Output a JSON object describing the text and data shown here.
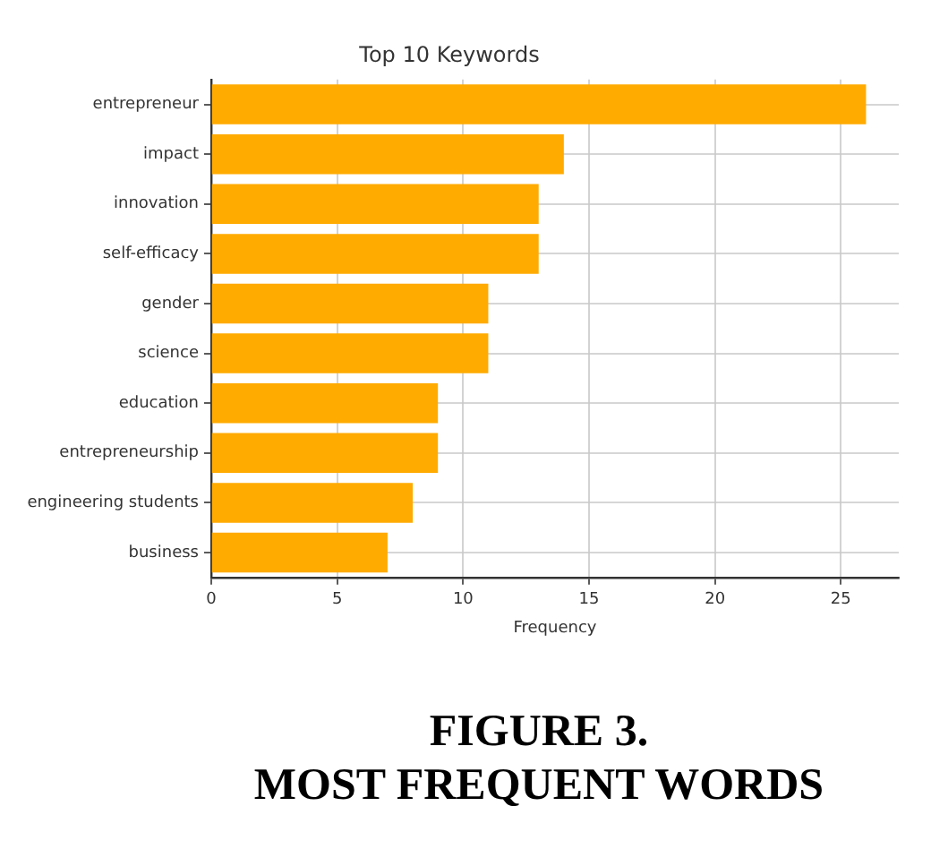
{
  "chart_data": {
    "type": "bar",
    "orientation": "horizontal",
    "title": "Top 10 Keywords",
    "xlabel": "Frequency",
    "categories": [
      "entrepreneur",
      "impact",
      "innovation",
      "self-efficacy",
      "gender",
      "science",
      "education",
      "entrepreneurship",
      "engineering students",
      "business"
    ],
    "values": [
      26,
      14,
      13,
      13,
      11,
      11,
      9,
      9,
      8,
      7
    ],
    "color": "#ffab00",
    "xlim": [
      0,
      27.3
    ],
    "xticks": [
      0,
      5,
      10,
      15,
      20,
      25
    ],
    "grid": true,
    "annotations": [
      "FIGURE 3.",
      "MOST FREQUENT WORDS"
    ]
  }
}
